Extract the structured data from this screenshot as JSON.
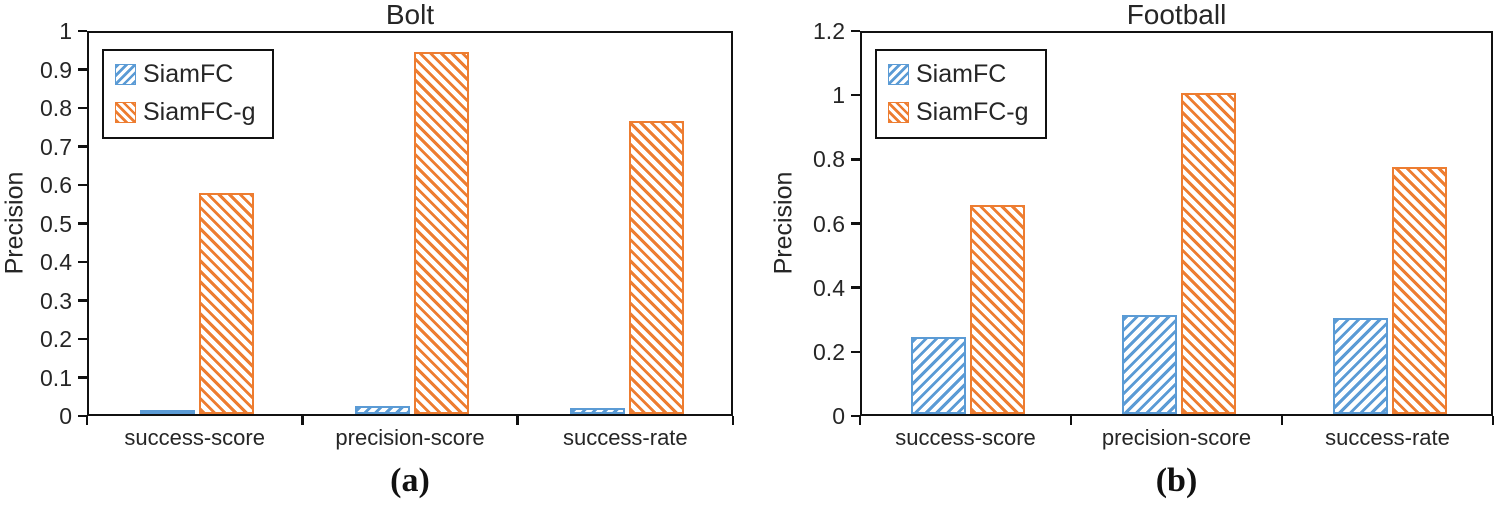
{
  "page": {
    "background": "#ffffff"
  },
  "colors": {
    "siamfc_blue": "#5B9BD5",
    "siamfcg_orange": "#ED7D31",
    "axis": "#111111",
    "text": "#262626"
  },
  "chart_data": [
    {
      "type": "bar",
      "title": "Bolt",
      "caption": "(a)",
      "xlabel": "",
      "ylabel": "Precision",
      "categories": [
        "success-score",
        "precision-score",
        "success-rate"
      ],
      "series": [
        {
          "name": "SiamFC",
          "color": "#5B9BD5",
          "hatch": "/",
          "values": [
            0.01,
            0.02,
            0.015
          ]
        },
        {
          "name": "SiamFC-g",
          "color": "#ED7D31",
          "hatch": "\\",
          "values": [
            0.575,
            0.94,
            0.76
          ]
        }
      ],
      "ylim": [
        0,
        1
      ],
      "yticks": [
        "0",
        "0.1",
        "0.2",
        "0.3",
        "0.4",
        "0.5",
        "0.6",
        "0.7",
        "0.8",
        "0.9",
        "1"
      ],
      "grid": false,
      "legend_position": "top-left"
    },
    {
      "type": "bar",
      "title": "Football",
      "caption": "(b)",
      "xlabel": "",
      "ylabel": "Precision",
      "categories": [
        "success-score",
        "precision-score",
        "success-rate"
      ],
      "series": [
        {
          "name": "SiamFC",
          "color": "#5B9BD5",
          "hatch": "/",
          "values": [
            0.24,
            0.31,
            0.3
          ]
        },
        {
          "name": "SiamFC-g",
          "color": "#ED7D31",
          "hatch": "\\",
          "values": [
            0.65,
            1.0,
            0.77
          ]
        }
      ],
      "ylim": [
        0,
        1.2
      ],
      "yticks": [
        "0",
        "0.2",
        "0.4",
        "0.6",
        "0.8",
        "1",
        "1.2"
      ],
      "grid": false,
      "legend_position": "top-left"
    }
  ]
}
